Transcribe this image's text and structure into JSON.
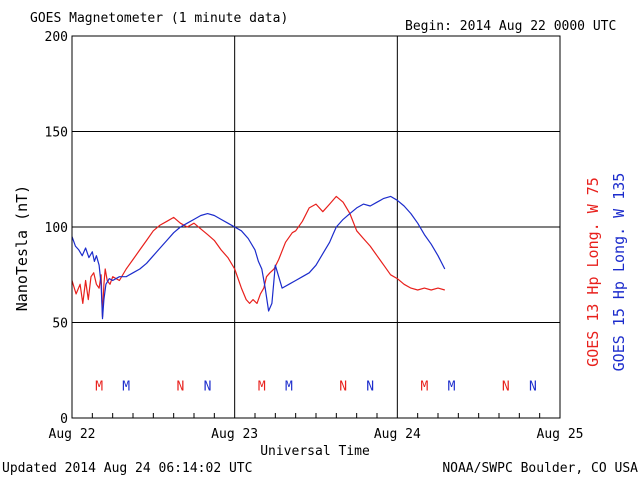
{
  "header": {
    "title": "GOES Magnetometer (1 minute data)",
    "begin": "Begin:  2014 Aug 22 0000 UTC"
  },
  "footer": {
    "updated": "Updated 2014 Aug 24 06:14:02 UTC",
    "credit": "NOAA/SWPC Boulder, CO USA"
  },
  "colors": {
    "goes13": "#e8201c",
    "goes15": "#1c2ccc",
    "axis": "#000000",
    "background": "#ffffff"
  },
  "chart_data": {
    "type": "line",
    "title": "GOES Magnetometer (1 minute data)",
    "xlabel": "Universal Time",
    "ylabel": "NanoTesla (nT)",
    "xlim": [
      0,
      72
    ],
    "ylim": [
      0,
      200
    ],
    "grid": true,
    "x_ticks": [
      {
        "value": 0,
        "label": "Aug 22"
      },
      {
        "value": 24,
        "label": "Aug 23"
      },
      {
        "value": 48,
        "label": "Aug 24"
      },
      {
        "value": 72,
        "label": "Aug 25"
      }
    ],
    "y_ticks": [
      0,
      50,
      100,
      150,
      200
    ],
    "series": [
      {
        "name": "GOES 13 Hp  Long. W 75",
        "color": "#e8201c",
        "x": [
          0,
          0.6,
          1.2,
          1.6,
          2,
          2.4,
          2.8,
          3.2,
          3.6,
          4,
          4.3,
          4.5,
          4.7,
          4.9,
          5.2,
          5.6,
          6,
          7,
          8,
          9,
          10,
          11,
          12,
          13,
          14,
          15,
          16,
          17,
          18,
          19,
          20,
          21,
          22,
          23,
          24,
          25,
          25.7,
          26.2,
          26.7,
          27.3,
          27.8,
          28.3,
          28.7,
          29.2,
          29.8,
          30.5,
          31.5,
          32.5,
          33,
          34,
          35,
          36,
          37,
          38,
          39,
          40,
          41,
          42,
          43,
          44,
          45,
          46,
          47,
          48,
          49,
          50,
          51,
          52,
          53,
          54,
          55
        ],
        "y": [
          72,
          65,
          70,
          60,
          72,
          62,
          74,
          76,
          70,
          68,
          75,
          53,
          70,
          78,
          72,
          70,
          74,
          72,
          78,
          83,
          88,
          93,
          98,
          101,
          103,
          105,
          102,
          100,
          102,
          99,
          96,
          93,
          88,
          84,
          78,
          68,
          62,
          60,
          62,
          60,
          65,
          68,
          74,
          76,
          78,
          83,
          92,
          97,
          98,
          103,
          110,
          112,
          108,
          112,
          116,
          113,
          107,
          98,
          94,
          90,
          85,
          80,
          75,
          73,
          70,
          68,
          67,
          68,
          67,
          68,
          67
        ]
      },
      {
        "name": "GOES 15 Hp  Long. W 135",
        "color": "#1c2ccc",
        "x": [
          0,
          0.5,
          1,
          1.5,
          2,
          2.5,
          3,
          3.3,
          3.6,
          4,
          4.3,
          4.5,
          4.7,
          5,
          5.5,
          6,
          7,
          8,
          9,
          10,
          11,
          12,
          13,
          14,
          15,
          16,
          17,
          18,
          19,
          20,
          21,
          22,
          23,
          24,
          25,
          26,
          27,
          27.5,
          28,
          28.5,
          29,
          29.5,
          30,
          31,
          32,
          33,
          34,
          35,
          36,
          37,
          38,
          38.5,
          39,
          40,
          41,
          42,
          43,
          44,
          45,
          46,
          47,
          48,
          49,
          50,
          51,
          52,
          53,
          54,
          55
        ],
        "y": [
          95,
          90,
          88,
          85,
          89,
          84,
          87,
          82,
          85,
          80,
          70,
          52,
          62,
          70,
          73,
          72,
          74,
          74,
          76,
          78,
          81,
          85,
          89,
          93,
          97,
          100,
          102,
          104,
          106,
          107,
          106,
          104,
          102,
          100,
          98,
          94,
          88,
          82,
          78,
          68,
          56,
          60,
          80,
          68,
          70,
          72,
          74,
          76,
          80,
          86,
          92,
          96,
          100,
          104,
          107,
          110,
          112,
          111,
          113,
          115,
          116,
          114,
          111,
          107,
          102,
          96,
          91,
          85,
          78
        ]
      }
    ],
    "markers": [
      {
        "label": "M",
        "x": 4,
        "color": "#e8201c"
      },
      {
        "label": "M",
        "x": 8,
        "color": "#1c2ccc"
      },
      {
        "label": "N",
        "x": 16,
        "color": "#e8201c"
      },
      {
        "label": "N",
        "x": 20,
        "color": "#1c2ccc"
      },
      {
        "label": "M",
        "x": 28,
        "color": "#e8201c"
      },
      {
        "label": "M",
        "x": 32,
        "color": "#1c2ccc"
      },
      {
        "label": "N",
        "x": 40,
        "color": "#e8201c"
      },
      {
        "label": "N",
        "x": 44,
        "color": "#1c2ccc"
      },
      {
        "label": "M",
        "x": 52,
        "color": "#e8201c"
      },
      {
        "label": "M",
        "x": 56,
        "color": "#1c2ccc"
      },
      {
        "label": "N",
        "x": 64,
        "color": "#e8201c"
      },
      {
        "label": "N",
        "x": 68,
        "color": "#1c2ccc"
      }
    ],
    "marker_level": 17
  }
}
